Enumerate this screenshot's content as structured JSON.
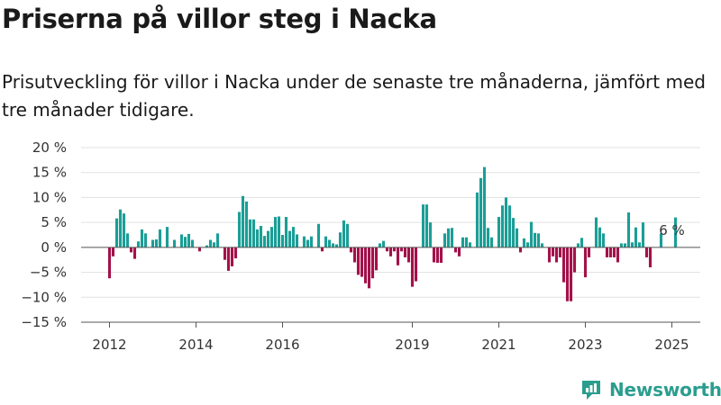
{
  "header": {
    "title": "Priserna på villor steg i Nacka",
    "subtitle": "Prisutveckling för villor i Nacka under de senaste tre månaderna, jämfört med tre månader tidigare."
  },
  "colors": {
    "positive": "#1a9e96",
    "negative": "#a3114a",
    "brand": "#2a9d8f"
  },
  "brand": {
    "name": "Newsworthy",
    "icon": "newsworthy-logo-icon"
  },
  "chart_data": {
    "type": "bar",
    "title": "Priserna på villor steg i Nacka",
    "subtitle": "Prisutveckling för villor i Nacka under de senaste tre månaderna, jämfört med tre månader tidigare.",
    "ylim": [
      -15,
      20
    ],
    "yticks": [
      -15,
      -10,
      -5,
      0,
      5,
      10,
      15,
      20
    ],
    "ytick_labels": [
      "−15 %",
      "−10 %",
      "−5 %",
      "0 %",
      "5 %",
      "10 %",
      "15 %",
      "20 %"
    ],
    "xticks": [
      2012,
      2014,
      2016,
      2019,
      2021,
      2023,
      2025
    ],
    "xtick_labels": [
      "2012",
      "2014",
      "2016",
      "2019",
      "2021",
      "2023",
      "2025"
    ],
    "start": "2012-01",
    "frequency": "monthly",
    "unit": "%",
    "grid": true,
    "legend": "none",
    "annotation": {
      "text": "6 %",
      "at": "2025-01"
    },
    "values": [
      -6.2,
      -1.8,
      5.8,
      7.6,
      6.8,
      2.8,
      -1.0,
      -2.3,
      1.2,
      3.6,
      2.8,
      0,
      1.5,
      1.6,
      3.6,
      0,
      4.1,
      0,
      1.5,
      0,
      2.6,
      2.1,
      2.7,
      1.5,
      0,
      -0.8,
      0,
      0.4,
      1.5,
      1.0,
      2.8,
      0,
      -2.5,
      -4.7,
      -3.8,
      -2.2,
      7.1,
      10.3,
      9.2,
      5.6,
      5.6,
      3.6,
      4.3,
      2.3,
      3.3,
      4.1,
      6.1,
      6.2,
      2.5,
      6.1,
      3.3,
      4.1,
      2.6,
      0,
      2.2,
      1.5,
      2.2,
      0,
      4.7,
      -0.8,
      2.2,
      1.5,
      0.8,
      0.6,
      3.0,
      5.4,
      4.7,
      -1.0,
      -3.0,
      -5.5,
      -5.9,
      -7.2,
      -8.2,
      -6.2,
      -4.6,
      0.8,
      1.3,
      -0.8,
      -1.8,
      -0.8,
      -3.6,
      -0.8,
      -2.0,
      -3.0,
      -7.9,
      -6.8,
      0,
      8.6,
      8.6,
      5.0,
      -3.0,
      -3.1,
      -3.1,
      2.8,
      3.8,
      3.9,
      -1.0,
      -1.8,
      2.0,
      2.0,
      1.0,
      0,
      11.0,
      13.9,
      16.1,
      3.9,
      2.0,
      0,
      6.1,
      8.4,
      10.0,
      8.4,
      5.9,
      3.8,
      -1.0,
      1.8,
      1.0,
      5.1,
      2.9,
      2.8,
      0.8,
      0,
      -3.0,
      -1.8,
      -3.0,
      -2.0,
      -7.0,
      -10.8,
      -10.8,
      -5.0,
      0.8,
      1.9,
      -6.0,
      -2.0,
      0,
      6.0,
      4.0,
      2.8,
      -2.0,
      -2.0,
      -2.0,
      -3.0,
      0.8,
      0.8,
      7.0,
      1.0,
      4.0,
      1.0,
      5.0,
      -2.0,
      -4.0,
      0,
      0,
      2.8,
      0,
      0,
      0,
      6.0
    ]
  }
}
